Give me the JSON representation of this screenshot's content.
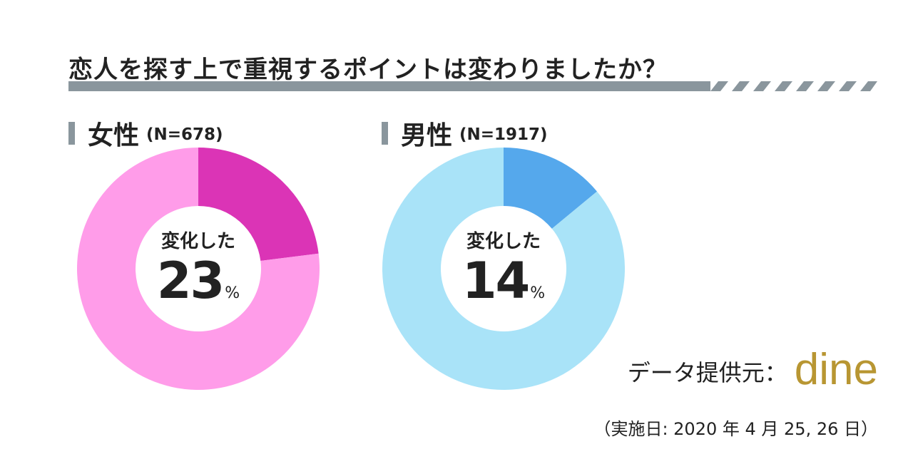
{
  "title": "恋人を探す上で重視するポイントは変わりましたか？",
  "chart_data": [
    {
      "type": "pie",
      "label": "女性",
      "n_label": "(N=678)",
      "center_caption": "変化した",
      "center_value": "23",
      "center_unit": "%",
      "slices": [
        {
          "label": "変化した",
          "value": 23,
          "color": "#db34b6"
        },
        {
          "value": 77,
          "color": "#ff9ce9"
        }
      ]
    },
    {
      "type": "pie",
      "label": "男性",
      "n_label": "(N=1917)",
      "center_caption": "変化した",
      "center_value": "14",
      "center_unit": "%",
      "slices": [
        {
          "label": "変化した",
          "value": 14,
          "color": "#55a8ec"
        },
        {
          "value": 86,
          "color": "#a9e3f8"
        }
      ]
    }
  ],
  "colors": {
    "title_bar": "#8a969d",
    "logo": "#b89632"
  },
  "credit": {
    "label": "データ提供元：",
    "logo": "dine"
  },
  "date": "（実施日: 2020 年 4 月 25, 26 日）"
}
